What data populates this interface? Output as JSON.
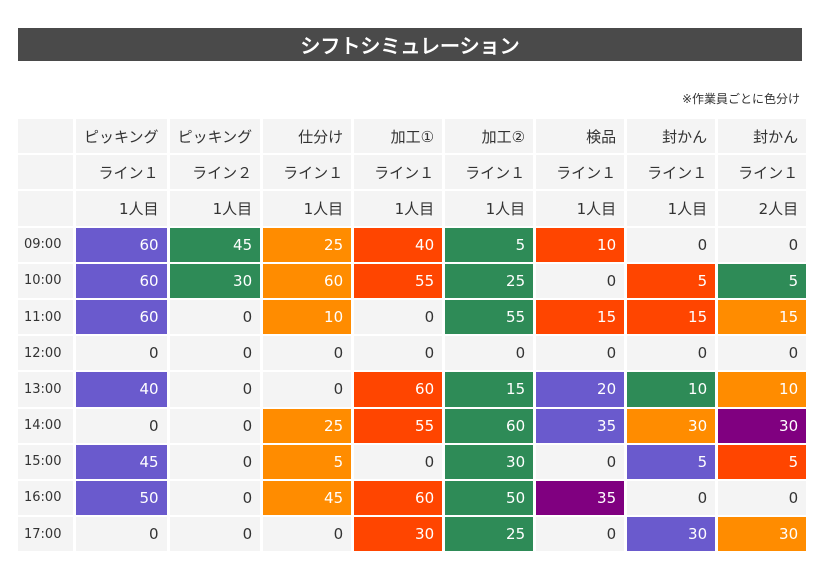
{
  "title": "シフトシミュレーション",
  "note": "※作業員ごとに色分け",
  "columns": [
    {
      "task": "ピッキング",
      "line": "ライン１",
      "worker": "1人目"
    },
    {
      "task": "ピッキング",
      "line": "ライン２",
      "worker": "1人目"
    },
    {
      "task": "仕分け",
      "line": "ライン１",
      "worker": "1人目"
    },
    {
      "task": "加工①",
      "line": "ライン１",
      "worker": "1人目"
    },
    {
      "task": "加工②",
      "line": "ライン１",
      "worker": "1人目"
    },
    {
      "task": "検品",
      "line": "ライン１",
      "worker": "1人目"
    },
    {
      "task": "封かん",
      "line": "ライン１",
      "worker": "1人目"
    },
    {
      "task": "封かん",
      "line": "ライン１",
      "worker": "2人目"
    }
  ],
  "colors": {
    "purple": "#6a5acd",
    "green": "#2e8b57",
    "orange": "#ff8c00",
    "red": "#ff4500",
    "dark_purple": "#800080",
    "none": "#f4f4f4"
  },
  "rows": [
    {
      "time": "09:00",
      "cells": [
        {
          "value": "60",
          "color": "purple"
        },
        {
          "value": "45",
          "color": "green"
        },
        {
          "value": "25",
          "color": "orange"
        },
        {
          "value": "40",
          "color": "red"
        },
        {
          "value": "5",
          "color": "green"
        },
        {
          "value": "10",
          "color": "red"
        },
        {
          "value": "0",
          "color": "none"
        },
        {
          "value": "0",
          "color": "none"
        }
      ]
    },
    {
      "time": "10:00",
      "cells": [
        {
          "value": "60",
          "color": "purple"
        },
        {
          "value": "30",
          "color": "green"
        },
        {
          "value": "60",
          "color": "orange"
        },
        {
          "value": "55",
          "color": "red"
        },
        {
          "value": "25",
          "color": "green"
        },
        {
          "value": "0",
          "color": "none"
        },
        {
          "value": "5",
          "color": "red"
        },
        {
          "value": "5",
          "color": "green"
        }
      ]
    },
    {
      "time": "11:00",
      "cells": [
        {
          "value": "60",
          "color": "purple"
        },
        {
          "value": "0",
          "color": "none"
        },
        {
          "value": "10",
          "color": "orange"
        },
        {
          "value": "0",
          "color": "none"
        },
        {
          "value": "55",
          "color": "green"
        },
        {
          "value": "15",
          "color": "red"
        },
        {
          "value": "15",
          "color": "red"
        },
        {
          "value": "15",
          "color": "orange"
        }
      ]
    },
    {
      "time": "12:00",
      "cells": [
        {
          "value": "0",
          "color": "none"
        },
        {
          "value": "0",
          "color": "none"
        },
        {
          "value": "0",
          "color": "none"
        },
        {
          "value": "0",
          "color": "none"
        },
        {
          "value": "0",
          "color": "none"
        },
        {
          "value": "0",
          "color": "none"
        },
        {
          "value": "0",
          "color": "none"
        },
        {
          "value": "0",
          "color": "none"
        }
      ]
    },
    {
      "time": "13:00",
      "cells": [
        {
          "value": "40",
          "color": "purple"
        },
        {
          "value": "0",
          "color": "none"
        },
        {
          "value": "0",
          "color": "none"
        },
        {
          "value": "60",
          "color": "red"
        },
        {
          "value": "15",
          "color": "green"
        },
        {
          "value": "20",
          "color": "purple"
        },
        {
          "value": "10",
          "color": "green"
        },
        {
          "value": "10",
          "color": "orange"
        }
      ]
    },
    {
      "time": "14:00",
      "cells": [
        {
          "value": "0",
          "color": "none"
        },
        {
          "value": "0",
          "color": "none"
        },
        {
          "value": "25",
          "color": "orange"
        },
        {
          "value": "55",
          "color": "red"
        },
        {
          "value": "60",
          "color": "green"
        },
        {
          "value": "35",
          "color": "purple"
        },
        {
          "value": "30",
          "color": "orange"
        },
        {
          "value": "30",
          "color": "dark_purple"
        }
      ]
    },
    {
      "time": "15:00",
      "cells": [
        {
          "value": "45",
          "color": "purple"
        },
        {
          "value": "0",
          "color": "none"
        },
        {
          "value": "5",
          "color": "orange"
        },
        {
          "value": "0",
          "color": "none"
        },
        {
          "value": "30",
          "color": "green"
        },
        {
          "value": "0",
          "color": "none"
        },
        {
          "value": "5",
          "color": "purple"
        },
        {
          "value": "5",
          "color": "red"
        }
      ]
    },
    {
      "time": "16:00",
      "cells": [
        {
          "value": "50",
          "color": "purple"
        },
        {
          "value": "0",
          "color": "none"
        },
        {
          "value": "45",
          "color": "orange"
        },
        {
          "value": "60",
          "color": "red"
        },
        {
          "value": "50",
          "color": "green"
        },
        {
          "value": "35",
          "color": "dark_purple"
        },
        {
          "value": "0",
          "color": "none"
        },
        {
          "value": "0",
          "color": "none"
        }
      ]
    },
    {
      "time": "17:00",
      "cells": [
        {
          "value": "0",
          "color": "none"
        },
        {
          "value": "0",
          "color": "none"
        },
        {
          "value": "0",
          "color": "none"
        },
        {
          "value": "30",
          "color": "red"
        },
        {
          "value": "25",
          "color": "green"
        },
        {
          "value": "0",
          "color": "none"
        },
        {
          "value": "30",
          "color": "purple"
        },
        {
          "value": "30",
          "color": "orange"
        }
      ]
    }
  ]
}
